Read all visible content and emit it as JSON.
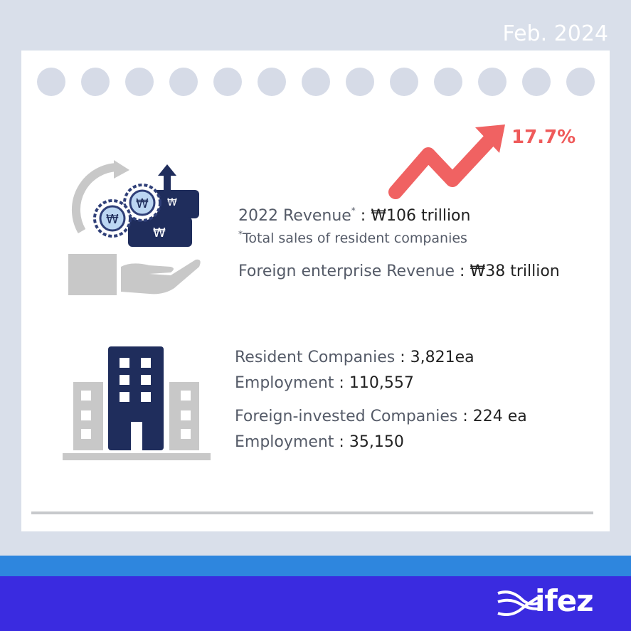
{
  "date": "Feb. 2024",
  "growth": {
    "value_text": "17.7%",
    "color": "#ef5a5a"
  },
  "revenue": {
    "label": "2022 Revenue",
    "marker": "*",
    "separator": " :  ",
    "value": "₩106 trillion",
    "note_marker": "*",
    "note": "Total sales of resident companies",
    "foreign_label": "Foreign enterprise Revenue",
    "foreign_sep": " : ",
    "foreign_value": "₩38 trillion"
  },
  "companies": {
    "resident_label": "Resident Companies",
    "resident_sep": " : ",
    "resident_value": "3,821ea",
    "employment_label": "Employment",
    "employment_sep": " : ",
    "employment_value": "110,557",
    "foreign_label": "Foreign-invested Companies",
    "foreign_sep": " : ",
    "foreign_value": "224 ea",
    "foreign_employment_label": "Employment",
    "foreign_employment_sep": " : ",
    "foreign_employment_value": "35,150"
  },
  "icons": {
    "revenue": "money-growth-hand-icon",
    "companies": "building-icon",
    "trend": "trend-up-arrow-icon",
    "logo": "ifez-logo"
  },
  "logo_text": "ifez",
  "colors": {
    "navy": "#1f2d5c",
    "gray": "#c8c8c8",
    "band_light": "#2e86de",
    "band_dark": "#3a2be0"
  }
}
